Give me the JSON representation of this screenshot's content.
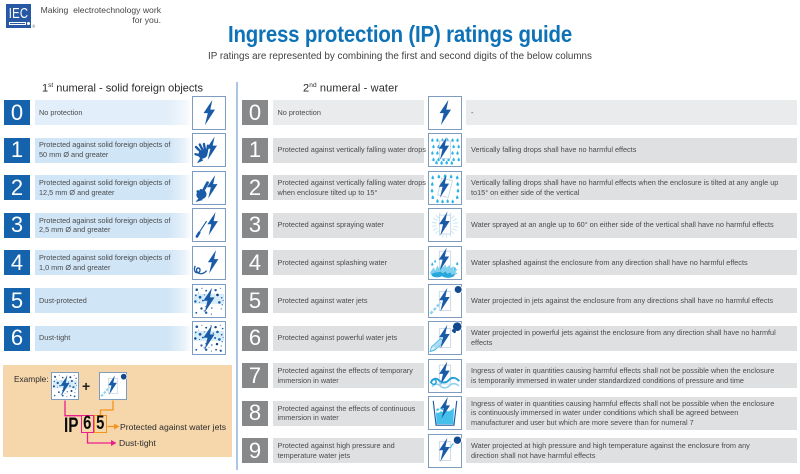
{
  "brand": {
    "logo_text": "IEC",
    "registered": "®",
    "tagline_line1": "Making  electrotechnology work",
    "tagline_line2": "for you."
  },
  "header": {
    "title": "Ingress protection (IP) ratings guide",
    "subtitle": "IP ratings are represented by combining the first and second digits of the below columns"
  },
  "columns": {
    "left": {
      "header": {
        "digit": "1",
        "ordinal": "st",
        "rest": " numeral - solid foreign objects"
      },
      "rows": [
        {
          "digit": "0",
          "label_lines": [
            "No protection"
          ],
          "icon": "bolt-icon"
        },
        {
          "digit": "1",
          "label_lines": [
            "Protected against solid foreign objects of",
            "50 mm Ø and greater"
          ],
          "icon": "hand-bolt-icon"
        },
        {
          "digit": "2",
          "label_lines": [
            "Protected against solid foreign objects of",
            "12,5 mm Ø and greater"
          ],
          "icon": "finger-bolt-icon"
        },
        {
          "digit": "3",
          "label_lines": [
            "Protected against solid foreign objects of",
            "2,5 mm Ø and greater"
          ],
          "icon": "tool-bolt-icon"
        },
        {
          "digit": "4",
          "label_lines": [
            "Protected against solid foreign objects of",
            "1,0 mm Ø and greater"
          ],
          "icon": "wire-bolt-icon"
        },
        {
          "digit": "5",
          "label_lines": [
            "Dust-protected"
          ],
          "icon": "dust-protected-icon"
        },
        {
          "digit": "6",
          "label_lines": [
            "Dust-tight"
          ],
          "icon": "dust-tight-icon"
        }
      ]
    },
    "right": {
      "header": {
        "digit": "2",
        "ordinal": "nd",
        "rest": " numeral - water"
      },
      "rows": [
        {
          "digit": "0",
          "label_lines": [
            "No protection"
          ],
          "icon": "bolt-icon",
          "criteria_lines": [
            "-"
          ]
        },
        {
          "digit": "1",
          "label_lines": [
            "Protected against vertically falling water drops"
          ],
          "icon": "falling-drops-icon",
          "criteria_lines": [
            "Vertically falling drops shall have no harmful effects"
          ]
        },
        {
          "digit": "2",
          "label_lines": [
            "Protected against vertically falling water drops",
            "when enclosure tilted up to 15°"
          ],
          "icon": "tilted-drops-icon",
          "criteria_lines": [
            "Vertically falling drops shall have no harmful effects when the enclosure is tilted at any angle up",
            "to15° on either side of the vertical"
          ]
        },
        {
          "digit": "3",
          "label_lines": [
            "Protected against spraying water"
          ],
          "icon": "spray-water-icon",
          "criteria_lines": [
            "Water sprayed at an angle up to 60° on either side of the vertical shall have no harmful effects"
          ]
        },
        {
          "digit": "4",
          "label_lines": [
            "Protected against splashing water"
          ],
          "icon": "splash-water-icon",
          "criteria_lines": [
            "Water splashed against the enclosure from any direction shall have no harmful effects"
          ]
        },
        {
          "digit": "5",
          "label_lines": [
            "Protected against water jets"
          ],
          "icon": "water-jet-icon",
          "criteria_lines": [
            "Water projected in jets against the enclosure from any directions shall have no harmful effects"
          ]
        },
        {
          "digit": "6",
          "label_lines": [
            "Protected against powerful water jets"
          ],
          "icon": "powerful-jet-icon",
          "criteria_lines": [
            "Water projected in powerful jets against the enclosure from any direction shall have no harmful",
            "effects"
          ]
        },
        {
          "digit": "7",
          "label_lines": [
            "Protected against the effects of temporary",
            "immersion in water"
          ],
          "icon": "temporary-immersion-icon",
          "criteria_lines": [
            "Ingress of water in quantities causing harmful effects shall not be possible when the enclosure",
            "is temporarily immersed in water under standardized conditions of pressure and time"
          ]
        },
        {
          "digit": "8",
          "label_lines": [
            "Protected against the effects of continuous",
            "immersion in water"
          ],
          "icon": "continuous-immersion-icon",
          "criteria_lines": [
            "Ingress of water in quantities causing harmful effects shall not be possible when the enclosure",
            "is continuously immersed in water under conditions which shall be agreed between",
            "manufacturer and user but which are more severe than for numeral 7"
          ]
        },
        {
          "digit": "9",
          "label_lines": [
            "Protected against high pressure and",
            "temperature water jets"
          ],
          "icon": "hot-jet-icon",
          "criteria_lines": [
            "Water projected at high pressure and high temperature against the enclosure from any",
            "direction shall not have harmful effects"
          ]
        }
      ]
    }
  },
  "example": {
    "label": "Example:",
    "plus": "+",
    "icons": {
      "first": "dust-tight-icon",
      "second": "water-jet-icon"
    },
    "code_prefix": "IP",
    "digit_first": "6",
    "digit_second": "5",
    "callout_water": "Protected against water jets",
    "callout_dust": "Dust-tight"
  },
  "colors": {
    "brand_blue": "#2857a4",
    "title_blue": "#0e72b6",
    "number_blue": "#1463ac",
    "band_blue": "#d0e5f6",
    "band_blue_row0": "#e2eef9",
    "number_gray": "#878889",
    "band_gray": "#dfe0e1",
    "band_gray_row0": "#eaebec",
    "divider_blue": "#abc6e5",
    "example_bg": "#f6d7ac",
    "magenta": "#ec1e8c",
    "orange": "#f6921e",
    "bolt_blue": "#1a5ba7",
    "water_cyan": "#2eb3e7"
  }
}
